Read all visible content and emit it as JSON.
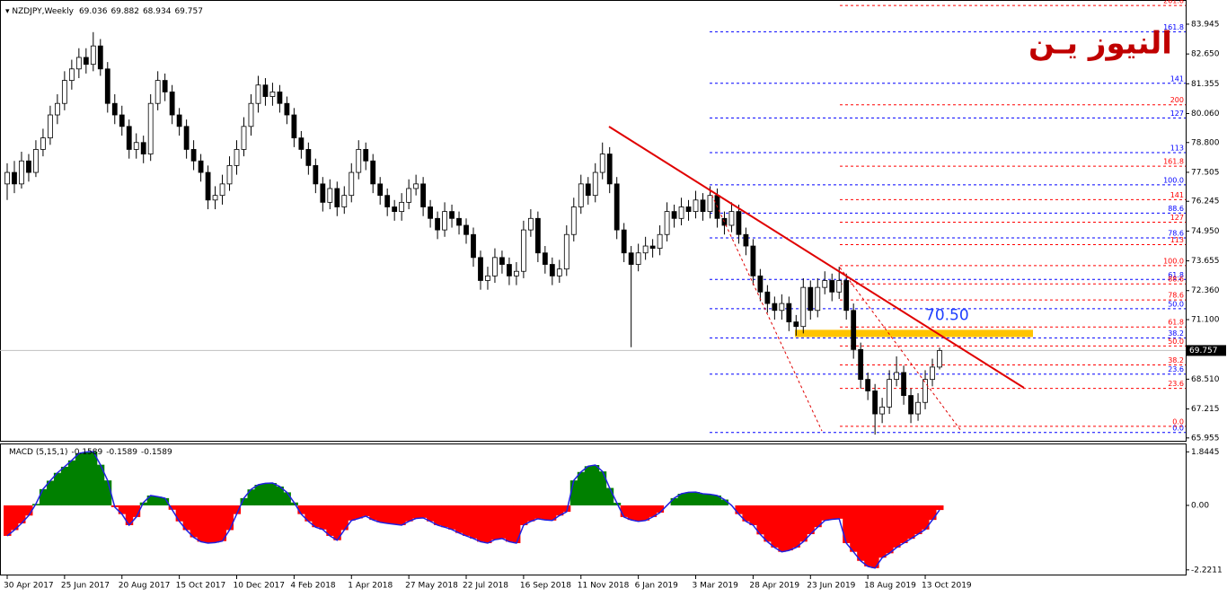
{
  "chart_data": {
    "type": "candlestick",
    "symbol": "NZDJPY,Weekly",
    "watermark": "النيوز يـن",
    "categories": [
      "30 Apr 2017",
      null,
      null,
      null,
      null,
      null,
      null,
      null,
      "25 Jun 2017",
      null,
      null,
      null,
      null,
      null,
      null,
      null,
      "20 Aug 2017",
      null,
      null,
      null,
      null,
      null,
      null,
      null,
      "15 Oct 2017",
      null,
      null,
      null,
      null,
      null,
      null,
      null,
      "10 Dec 2017",
      null,
      null,
      null,
      null,
      null,
      null,
      null,
      "4 Feb 2018",
      null,
      null,
      null,
      null,
      null,
      null,
      null,
      "1 Apr 2018",
      null,
      null,
      null,
      null,
      null,
      null,
      null,
      "27 May 2018",
      null,
      null,
      null,
      null,
      null,
      null,
      null,
      "22 Jul 2018",
      null,
      null,
      null,
      null,
      null,
      null,
      null,
      "16 Sep 2018",
      null,
      null,
      null,
      null,
      null,
      null,
      null,
      "11 Nov 2018",
      null,
      null,
      null,
      null,
      null,
      null,
      null,
      "6 Jan 2019",
      null,
      null,
      null,
      null,
      null,
      null,
      null,
      "3 Mar 2019",
      null,
      null,
      null,
      null,
      null,
      null,
      null,
      "28 Apr 2019",
      null,
      null,
      null,
      null,
      null,
      null,
      null,
      "23 Jun 2019",
      null,
      null,
      null,
      null,
      null,
      null,
      null,
      "18 Aug 2019",
      null,
      null,
      null,
      null,
      null,
      null,
      null,
      "13 Oct 2019",
      null,
      null
    ],
    "ohlc": [
      [
        77.0,
        77.9,
        76.3,
        77.5
      ],
      [
        77.5,
        78.0,
        76.6,
        77.0
      ],
      [
        77.0,
        78.4,
        76.8,
        78.0
      ],
      [
        78.0,
        78.3,
        77.1,
        77.5
      ],
      [
        77.5,
        78.9,
        77.3,
        78.5
      ],
      [
        78.5,
        79.4,
        78.2,
        79.0
      ],
      [
        79.0,
        80.4,
        78.7,
        80.0
      ],
      [
        80.0,
        80.9,
        79.6,
        80.5
      ],
      [
        80.5,
        81.9,
        80.2,
        81.5
      ],
      [
        81.5,
        82.4,
        81.1,
        82.0
      ],
      [
        82.0,
        82.9,
        81.6,
        82.5
      ],
      [
        82.5,
        82.9,
        81.8,
        82.2
      ],
      [
        82.2,
        83.6,
        81.9,
        83.0
      ],
      [
        83.0,
        83.3,
        81.7,
        82.0
      ],
      [
        82.0,
        82.3,
        80.1,
        80.5
      ],
      [
        80.5,
        80.9,
        79.6,
        80.0
      ],
      [
        80.0,
        80.4,
        79.1,
        79.5
      ],
      [
        79.5,
        79.8,
        78.1,
        78.5
      ],
      [
        78.5,
        79.2,
        78.1,
        78.8
      ],
      [
        78.8,
        79.1,
        77.9,
        78.3
      ],
      [
        78.3,
        80.9,
        78.0,
        80.5
      ],
      [
        80.5,
        81.9,
        80.2,
        81.5
      ],
      [
        81.5,
        81.8,
        80.6,
        81.0
      ],
      [
        81.0,
        81.3,
        79.6,
        80.0
      ],
      [
        80.0,
        80.3,
        79.1,
        79.5
      ],
      [
        79.5,
        79.8,
        78.1,
        78.5
      ],
      [
        78.5,
        78.9,
        77.6,
        78.0
      ],
      [
        78.0,
        78.3,
        77.1,
        77.5
      ],
      [
        77.5,
        77.8,
        75.9,
        76.3
      ],
      [
        76.3,
        76.9,
        75.9,
        76.5
      ],
      [
        76.5,
        77.4,
        76.1,
        77.0
      ],
      [
        77.0,
        78.2,
        76.7,
        77.8
      ],
      [
        77.8,
        78.9,
        77.4,
        78.5
      ],
      [
        78.5,
        79.9,
        78.2,
        79.5
      ],
      [
        79.5,
        80.9,
        79.1,
        80.5
      ],
      [
        80.5,
        81.7,
        80.1,
        81.3
      ],
      [
        81.3,
        81.6,
        80.4,
        80.8
      ],
      [
        80.8,
        81.4,
        80.4,
        81.0
      ],
      [
        81.0,
        81.3,
        80.1,
        80.5
      ],
      [
        80.5,
        80.8,
        79.6,
        80.0
      ],
      [
        80.0,
        80.3,
        78.6,
        79.0
      ],
      [
        79.0,
        79.3,
        78.1,
        78.5
      ],
      [
        78.5,
        78.8,
        77.4,
        77.8
      ],
      [
        77.8,
        78.1,
        76.6,
        77.0
      ],
      [
        77.0,
        77.3,
        75.8,
        76.2
      ],
      [
        76.2,
        77.2,
        75.9,
        76.8
      ],
      [
        76.8,
        77.1,
        75.6,
        76.0
      ],
      [
        76.0,
        76.9,
        75.7,
        76.5
      ],
      [
        76.5,
        77.9,
        76.2,
        77.5
      ],
      [
        77.5,
        78.9,
        77.2,
        78.5
      ],
      [
        78.5,
        78.8,
        77.6,
        78.0
      ],
      [
        78.0,
        78.3,
        76.6,
        77.0
      ],
      [
        77.0,
        77.3,
        76.1,
        76.5
      ],
      [
        76.5,
        76.8,
        75.6,
        76.0
      ],
      [
        76.0,
        76.3,
        75.4,
        75.8
      ],
      [
        75.8,
        76.6,
        75.4,
        76.2
      ],
      [
        76.2,
        77.2,
        75.9,
        76.8
      ],
      [
        76.8,
        77.4,
        76.5,
        77.0
      ],
      [
        77.0,
        77.3,
        75.6,
        76.0
      ],
      [
        76.0,
        76.3,
        75.1,
        75.5
      ],
      [
        75.5,
        75.8,
        74.6,
        75.0
      ],
      [
        75.0,
        76.2,
        74.7,
        75.8
      ],
      [
        75.8,
        76.1,
        75.1,
        75.5
      ],
      [
        75.5,
        75.8,
        74.8,
        75.2
      ],
      [
        75.2,
        75.5,
        74.4,
        74.8
      ],
      [
        74.8,
        75.1,
        73.4,
        73.8
      ],
      [
        73.8,
        74.1,
        72.4,
        72.8
      ],
      [
        72.8,
        73.4,
        72.4,
        73.0
      ],
      [
        73.0,
        74.2,
        72.7,
        73.8
      ],
      [
        73.8,
        74.1,
        73.1,
        73.5
      ],
      [
        73.5,
        73.8,
        72.6,
        73.0
      ],
      [
        73.0,
        73.6,
        72.6,
        73.2
      ],
      [
        73.2,
        75.4,
        72.9,
        75.0
      ],
      [
        75.0,
        75.9,
        74.7,
        75.5
      ],
      [
        75.5,
        75.8,
        73.6,
        74.0
      ],
      [
        74.0,
        74.3,
        73.1,
        73.5
      ],
      [
        73.5,
        73.8,
        72.6,
        73.0
      ],
      [
        73.0,
        73.7,
        72.7,
        73.3
      ],
      [
        73.3,
        75.2,
        73.0,
        74.8
      ],
      [
        74.8,
        76.4,
        74.5,
        76.0
      ],
      [
        76.0,
        77.4,
        75.7,
        77.0
      ],
      [
        77.0,
        77.3,
        76.1,
        76.5
      ],
      [
        76.5,
        77.9,
        76.2,
        77.5
      ],
      [
        77.5,
        78.8,
        77.2,
        78.3
      ],
      [
        78.3,
        78.6,
        76.6,
        77.0
      ],
      [
        77.0,
        77.3,
        74.6,
        75.0
      ],
      [
        75.0,
        75.3,
        73.6,
        74.0
      ],
      [
        74.0,
        74.3,
        69.9,
        73.5
      ],
      [
        73.5,
        74.4,
        73.2,
        74.0
      ],
      [
        74.0,
        74.7,
        73.7,
        74.3
      ],
      [
        74.3,
        74.6,
        73.8,
        74.2
      ],
      [
        74.2,
        75.2,
        73.9,
        74.8
      ],
      [
        74.8,
        76.2,
        74.5,
        75.8
      ],
      [
        75.8,
        76.1,
        75.1,
        75.5
      ],
      [
        75.5,
        76.4,
        75.2,
        76.0
      ],
      [
        76.0,
        76.3,
        75.4,
        75.8
      ],
      [
        75.8,
        76.7,
        75.5,
        76.3
      ],
      [
        76.3,
        76.6,
        75.4,
        75.8
      ],
      [
        75.8,
        76.9,
        75.5,
        76.5
      ],
      [
        76.5,
        76.8,
        75.1,
        75.5
      ],
      [
        75.5,
        75.8,
        74.8,
        75.2
      ],
      [
        75.2,
        76.2,
        74.9,
        75.8
      ],
      [
        75.8,
        76.1,
        74.4,
        74.8
      ],
      [
        74.8,
        75.1,
        73.9,
        74.3
      ],
      [
        74.3,
        74.6,
        72.6,
        73.0
      ],
      [
        73.0,
        73.3,
        71.9,
        72.3
      ],
      [
        72.3,
        72.6,
        71.4,
        71.8
      ],
      [
        71.8,
        72.1,
        71.1,
        71.5
      ],
      [
        71.5,
        72.2,
        71.1,
        71.8
      ],
      [
        71.8,
        72.1,
        70.6,
        71.0
      ],
      [
        71.0,
        71.3,
        70.4,
        70.8
      ],
      [
        70.8,
        72.9,
        70.5,
        72.5
      ],
      [
        72.5,
        72.8,
        71.1,
        71.5
      ],
      [
        71.5,
        72.9,
        71.2,
        72.5
      ],
      [
        72.5,
        73.2,
        72.2,
        72.8
      ],
      [
        72.8,
        73.1,
        71.9,
        72.3
      ],
      [
        72.3,
        73.4,
        72.0,
        72.8
      ],
      [
        72.8,
        73.1,
        71.1,
        71.5
      ],
      [
        71.5,
        71.8,
        69.4,
        69.8
      ],
      [
        69.8,
        70.1,
        68.1,
        68.5
      ],
      [
        68.5,
        68.8,
        67.6,
        68.0
      ],
      [
        68.0,
        68.3,
        66.1,
        67.0
      ],
      [
        67.0,
        67.7,
        66.6,
        67.3
      ],
      [
        67.3,
        68.9,
        67.0,
        68.5
      ],
      [
        68.5,
        69.5,
        68.2,
        68.8
      ],
      [
        68.8,
        69.1,
        67.4,
        67.8
      ],
      [
        67.8,
        68.1,
        66.6,
        67.0
      ],
      [
        67.0,
        67.9,
        66.7,
        67.5
      ],
      [
        67.5,
        68.9,
        67.2,
        68.5
      ],
      [
        68.5,
        69.4,
        68.2,
        69.036
      ],
      [
        69.036,
        69.882,
        68.934,
        69.757
      ]
    ],
    "ylim": [
      65.87,
      84.88
    ],
    "yticks": [
      {
        "value": 65.955,
        "label": "65.955"
      },
      {
        "value": 67.215,
        "label": "67.215"
      },
      {
        "value": 68.51,
        "label": "68.510"
      },
      {
        "value": 71.1,
        "label": "71.100"
      },
      {
        "value": 72.36,
        "label": "72.360"
      },
      {
        "value": 73.655,
        "label": "73.655"
      },
      {
        "value": 74.95,
        "label": "74.950"
      },
      {
        "value": 76.245,
        "label": "76.245"
      },
      {
        "value": 77.505,
        "label": "77.505"
      },
      {
        "value": 78.8,
        "label": "78.800"
      },
      {
        "value": 80.06,
        "label": "80.060"
      },
      {
        "value": 81.355,
        "label": "81.355"
      },
      {
        "value": 82.65,
        "label": "82.650"
      },
      83.945
    ],
    "annotation": {
      "value": 70.5,
      "label": "70.50",
      "color": "#1f3fff",
      "band_color": "#ffc400"
    },
    "fibs": [
      {
        "color": "#0000ff",
        "low": 66.19,
        "high": 76.96,
        "levels": [
          {
            "value": 0,
            "label": "0.0"
          },
          23.6,
          38.2,
          {
            "value": 50,
            "label": "50.0"
          },
          61.8,
          78.6,
          88.6,
          {
            "value": 100,
            "label": "100.0"
          },
          113,
          127,
          141,
          161.8
        ]
      },
      {
        "color": "#ff0000",
        "low": 66.46,
        "high": 73.45,
        "levels": [
          {
            "value": 0,
            "label": "0.0"
          },
          23.6,
          38.2,
          {
            "value": 50,
            "label": "50.0"
          },
          61.8,
          78.6,
          88.6,
          {
            "value": 100,
            "label": "100.0"
          },
          113,
          127,
          141,
          161.8,
          200,
          261.8
        ]
      }
    ],
    "macd": {
      "title": "MACD (5,15,1)",
      "readout": [
        -0.1589,
        -0.1589,
        -0.1589
      ],
      "ylim": [
        -2.32,
        2.07
      ],
      "yticks": [
        -2.2211,
        {
          "value": 0,
          "label": "0.00"
        },
        1.8445
      ],
      "positive_color": "#008000",
      "negative_color": "#ff0000",
      "line_color": "#2020e0",
      "values": [
        -1.05,
        -0.85,
        -0.62,
        -0.35,
        0.05,
        0.56,
        0.85,
        1.12,
        1.33,
        1.55,
        1.79,
        1.84,
        1.85,
        1.4,
        0.86,
        -0.06,
        -0.3,
        -0.68,
        -0.4,
        0.1,
        0.34,
        0.3,
        0.25,
        -0.15,
        -0.55,
        -0.85,
        -1.1,
        -1.25,
        -1.3,
        -1.28,
        -1.23,
        -0.85,
        -0.3,
        0.25,
        0.55,
        0.71,
        0.76,
        0.77,
        0.65,
        0.45,
        0.1,
        -0.3,
        -0.55,
        -0.75,
        -0.83,
        -1.05,
        -1.2,
        -0.85,
        -0.52,
        -0.45,
        -0.37,
        -0.5,
        -0.58,
        -0.62,
        -0.65,
        -0.68,
        -0.55,
        -0.45,
        -0.43,
        -0.55,
        -0.68,
        -0.75,
        -0.83,
        -0.95,
        -1.05,
        -1.14,
        -1.25,
        -1.3,
        -1.18,
        -1.14,
        -1.25,
        -1.3,
        -0.68,
        -0.55,
        -0.46,
        -0.5,
        -0.52,
        -0.35,
        -0.22,
        0.86,
        1.15,
        1.35,
        1.39,
        1.17,
        0.6,
        0.09,
        -0.4,
        -0.5,
        -0.55,
        -0.52,
        -0.4,
        -0.25,
        0.0,
        0.25,
        0.4,
        0.45,
        0.46,
        0.4,
        0.38,
        0.34,
        0.2,
        0.0,
        -0.3,
        -0.55,
        -0.68,
        -1.0,
        -1.25,
        -1.45,
        -1.6,
        -1.55,
        -1.45,
        -1.25,
        -0.99,
        -0.75,
        -0.52,
        -0.48,
        -0.46,
        -1.3,
        -1.6,
        -1.91,
        -2.1,
        -2.16,
        -1.8,
        -1.65,
        -1.45,
        -1.3,
        -1.15,
        -0.99,
        -0.83,
        -0.5,
        -0.1589
      ]
    }
  }
}
